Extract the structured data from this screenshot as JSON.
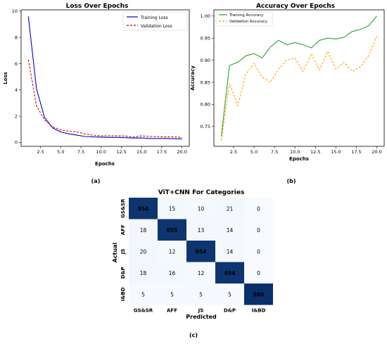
{
  "panel_labels": {
    "a": "(a)",
    "b": "(b)",
    "c": "(c)"
  },
  "chart_data": [
    {
      "type": "line",
      "title": "Loss Over Epochs",
      "xlabel": "Epochs",
      "ylabel": "Loss",
      "xlim": [
        0.1,
        20.9
      ],
      "ylim": [
        -0.3,
        10.1
      ],
      "xticks": [
        2.5,
        5.0,
        7.5,
        10.0,
        12.5,
        15.0,
        17.5,
        20.0
      ],
      "yticks": [
        0,
        2,
        4,
        6,
        8,
        10
      ],
      "legend": "top-right",
      "x": [
        1,
        2,
        3,
        4,
        5,
        6,
        7,
        8,
        9,
        10,
        11,
        12,
        13,
        14,
        15,
        16,
        17,
        18,
        19,
        20
      ],
      "series": [
        {
          "name": "Training Loss",
          "color": "#0000cc",
          "style": "solid",
          "values": [
            9.6,
            4.1,
            1.9,
            1.1,
            0.8,
            0.65,
            0.55,
            0.45,
            0.42,
            0.4,
            0.38,
            0.38,
            0.36,
            0.33,
            0.34,
            0.3,
            0.3,
            0.3,
            0.28,
            0.27
          ]
        },
        {
          "name": "Validation Loss",
          "color": "#cc0000",
          "style": "dashed",
          "values": [
            6.3,
            2.8,
            1.7,
            1.2,
            0.95,
            0.85,
            0.8,
            0.65,
            0.55,
            0.5,
            0.5,
            0.5,
            0.48,
            0.4,
            0.5,
            0.45,
            0.44,
            0.42,
            0.42,
            0.38
          ]
        }
      ]
    },
    {
      "type": "line",
      "title": "Accuracy Over Epochs",
      "xlabel": "Epochs",
      "ylabel": "Accuracy",
      "xlim": [
        0.1,
        20.9
      ],
      "ylim": [
        0.705,
        1.014
      ],
      "xticks": [
        2.5,
        5.0,
        7.5,
        10.0,
        12.5,
        15.0,
        17.5,
        20.0
      ],
      "yticks": [
        0.75,
        0.8,
        0.85,
        0.9,
        0.95,
        1.0
      ],
      "legend": "top-left",
      "x": [
        1,
        2,
        3,
        4,
        5,
        6,
        7,
        8,
        9,
        10,
        11,
        12,
        13,
        14,
        15,
        16,
        17,
        18,
        19,
        20
      ],
      "series": [
        {
          "name": "Training Accuracy",
          "color": "#2ca02c",
          "style": "solid",
          "values": [
            0.728,
            0.888,
            0.895,
            0.91,
            0.915,
            0.905,
            0.93,
            0.945,
            0.935,
            0.94,
            0.935,
            0.928,
            0.945,
            0.95,
            0.948,
            0.952,
            0.965,
            0.97,
            0.978,
            1.0
          ]
        },
        {
          "name": "Validation Accuracy",
          "color": "#ffa500",
          "style": "dashed",
          "values": [
            0.718,
            0.848,
            0.797,
            0.868,
            0.893,
            0.862,
            0.85,
            0.88,
            0.9,
            0.905,
            0.875,
            0.915,
            0.878,
            0.92,
            0.88,
            0.895,
            0.875,
            0.885,
            0.91,
            0.955
          ]
        }
      ]
    },
    {
      "type": "heatmap",
      "title": "ViT+CNN For Categories",
      "xlabel": "Predicted",
      "ylabel": "Actual",
      "x_categories": [
        "GS&SR",
        "AFF",
        "JS",
        "D&P",
        "I&BD"
      ],
      "y_categories": [
        "GS&SR",
        "AFF",
        "JS",
        "D&P",
        "I&BD"
      ],
      "values": [
        [
          954,
          15,
          10,
          21,
          0
        ],
        [
          18,
          955,
          13,
          14,
          0
        ],
        [
          20,
          12,
          954,
          14,
          0
        ],
        [
          18,
          16,
          12,
          954,
          0
        ],
        [
          5,
          5,
          5,
          5,
          980
        ]
      ],
      "colormap": "Blues"
    }
  ]
}
